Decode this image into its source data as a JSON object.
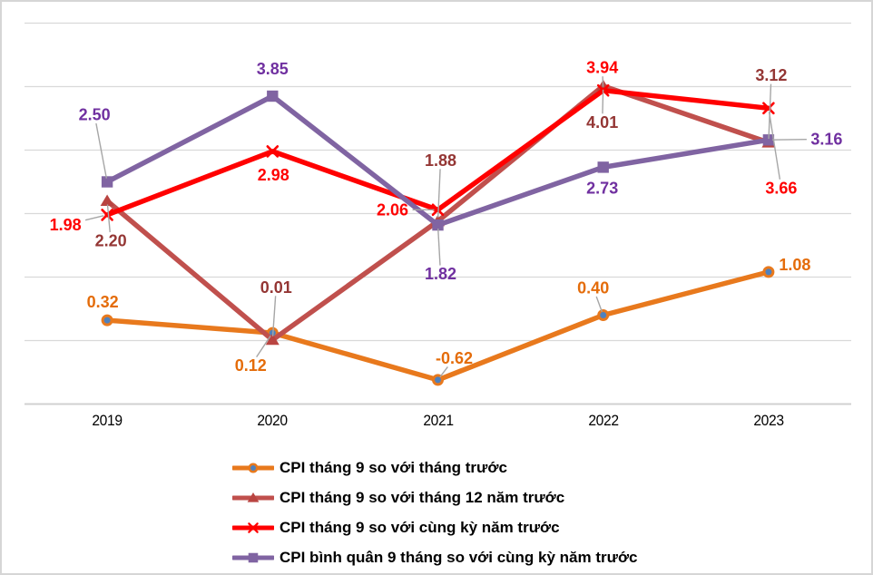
{
  "chart_data": {
    "type": "line",
    "title": "",
    "categories": [
      "2019",
      "2020",
      "2021",
      "2022",
      "2023"
    ],
    "series": [
      {
        "name": "CPI tháng 9 so với tháng trước",
        "color": "#E8791D",
        "label_color": "#E46C0A",
        "marker": "circle",
        "marker_fill": "#4F81BD",
        "values": [
          0.32,
          0.12,
          -0.62,
          0.4,
          1.08
        ]
      },
      {
        "name": "CPI tháng 9 so với tháng 12 năm trước",
        "color": "#C0504D",
        "label_color": "#943634",
        "marker": "triangle",
        "marker_fill": "#B94441",
        "values": [
          2.2,
          0.01,
          1.88,
          4.01,
          3.12
        ]
      },
      {
        "name": "CPI tháng 9 so với cùng kỳ năm trước",
        "color": "#FF0000",
        "label_color": "#FF0000",
        "marker": "x",
        "marker_fill": "#FF0000",
        "values": [
          1.98,
          2.98,
          2.06,
          3.94,
          3.66
        ]
      },
      {
        "name": "CPI bình quân 9 tháng so với cùng kỳ năm trước",
        "color": "#8064A2",
        "label_color": "#7030A0",
        "marker": "square",
        "marker_fill": "#8064A2",
        "values": [
          2.5,
          3.85,
          1.82,
          2.73,
          3.16
        ]
      }
    ],
    "ylim": [
      -1,
      5
    ],
    "y_grid_step": 1,
    "grid": true,
    "y_axis_labels_shown": false,
    "legend_position": "bottom-left",
    "data_label_decimals": 2,
    "colors": {
      "gridline": "#D9D9D9",
      "axis_line": "#D0D0D0",
      "leader_line": "#A6A6A6",
      "frame_border": "#D6D6D6",
      "axis_text": "#000000",
      "legend_text": "#000000"
    },
    "label_layout": [
      [
        [
          -5,
          -20,
          0
        ],
        [
          -24,
          36,
          1
        ],
        [
          18,
          -24,
          1
        ],
        [
          -11,
          -30,
          1
        ],
        [
          29,
          -8,
          0
        ]
      ],
      [
        [
          4,
          44,
          1
        ],
        [
          4,
          -58,
          1
        ],
        [
          3,
          -67,
          1
        ],
        [
          -1,
          40,
          1
        ],
        [
          3,
          -74,
          1
        ]
      ],
      [
        [
          -46,
          11,
          1
        ],
        [
          1,
          26,
          0
        ],
        [
          -50,
          0,
          1
        ],
        [
          -1,
          -25,
          1
        ],
        [
          14,
          88,
          1
        ]
      ],
      [
        [
          -14,
          -74,
          1
        ],
        [
          0,
          -30,
          0
        ],
        [
          3,
          54,
          1
        ],
        [
          -1,
          23,
          0
        ],
        [
          64,
          -1,
          1
        ]
      ]
    ]
  }
}
